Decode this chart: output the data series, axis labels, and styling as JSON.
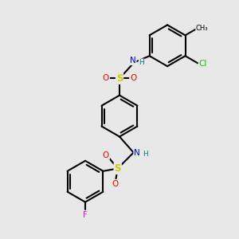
{
  "bg_color": "#e8e8e8",
  "atom_colors": {
    "C": "#000000",
    "N": "#0000ff",
    "S": "#cccc00",
    "O": "#ff0000",
    "Cl": "#00cc00",
    "F": "#ff00ff",
    "H": "#008080"
  },
  "bond_color": "#000000",
  "bond_width": 1.5,
  "title": ""
}
